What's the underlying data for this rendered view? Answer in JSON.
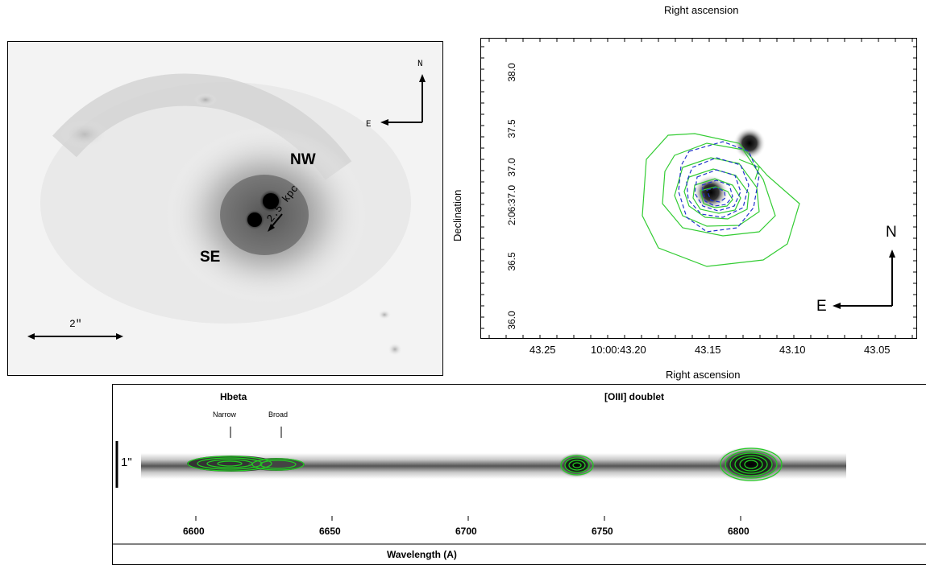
{
  "panel_a": {
    "labels": {
      "nw": "NW",
      "se": "SE"
    },
    "compass": {
      "n": "N",
      "e": "E"
    },
    "scale_bar": "2\"",
    "separation": "2.5 kpc"
  },
  "panel_b": {
    "top_axis_title": "Right ascension",
    "xlabel": "Right ascension",
    "ylabel": "Declination",
    "x_ticks": [
      "43.25",
      "10:00:43.20",
      "43.15",
      "43.10",
      "43.05"
    ],
    "y_ticks": [
      "36.0",
      "36.5",
      "2:06:37.0",
      "37.0",
      "37.5",
      "38.0"
    ],
    "y_ticks_display": [
      "38.0",
      "37.5",
      "37.0",
      "2:06:37.0",
      "36.5",
      "36.0"
    ],
    "compass": {
      "n": "N",
      "e": "E"
    },
    "contour_colors": {
      "green": "#33cc33",
      "blue": "#2233cc"
    }
  },
  "panel_c": {
    "line_labels": {
      "hbeta": "Hbeta",
      "oiii": "[OIII] doublet"
    },
    "components": {
      "narrow": "Narrow",
      "broad": "Broad"
    },
    "slit_scale": "1\"",
    "x_ticks": [
      "6600",
      "6650",
      "6700",
      "6750",
      "6800"
    ],
    "xlabel": "Wavelength (A)",
    "contour_color": "#22cc22"
  }
}
